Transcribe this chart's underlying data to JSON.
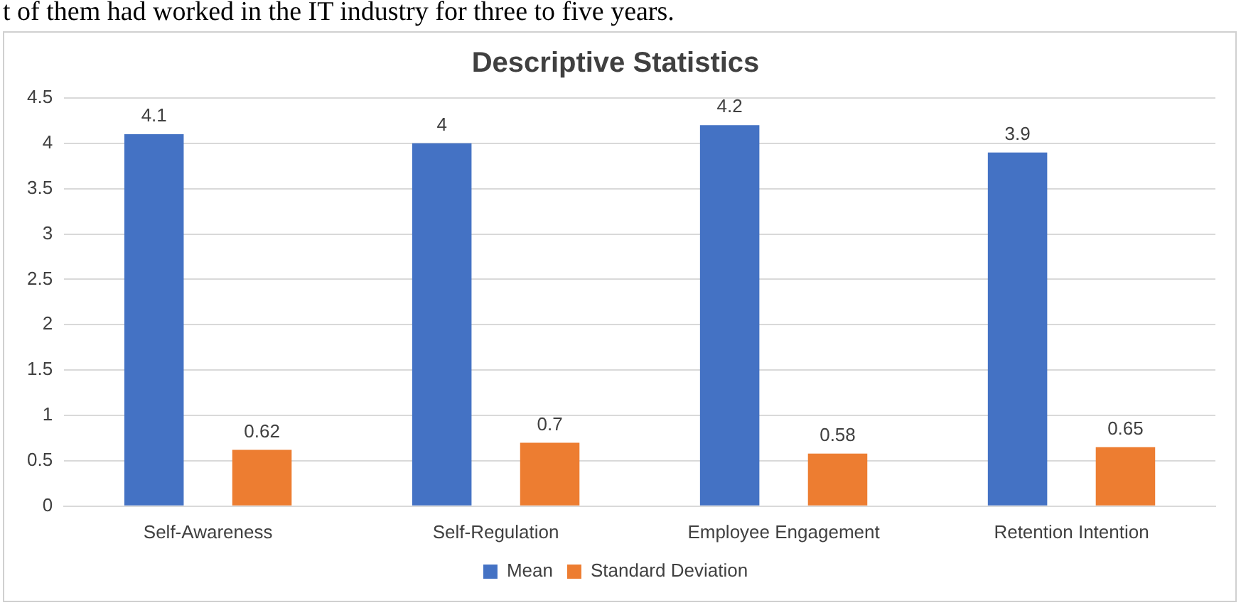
{
  "chart_data": {
    "type": "bar",
    "title": "Descriptive Statistics",
    "annotations": [
      "t of them had worked in the IT industry for three to five years."
    ],
    "categories": [
      "Self-Awareness",
      "Self-Regulation",
      "Employee Engagement",
      "Retention Intention"
    ],
    "series": [
      {
        "name": "Mean",
        "color": "#4472c4",
        "values": [
          4.1,
          4,
          4.2,
          3.9
        ]
      },
      {
        "name": "Standard Deviation",
        "color": "#ed7d31",
        "values": [
          0.62,
          0.7,
          0.58,
          0.65
        ]
      }
    ],
    "ylim": [
      0,
      4.5
    ],
    "yticks": [
      0,
      0.5,
      1,
      1.5,
      2,
      2.5,
      3,
      3.5,
      4,
      4.5
    ],
    "grid": "y",
    "legend": "bottom",
    "data_labels": true
  }
}
